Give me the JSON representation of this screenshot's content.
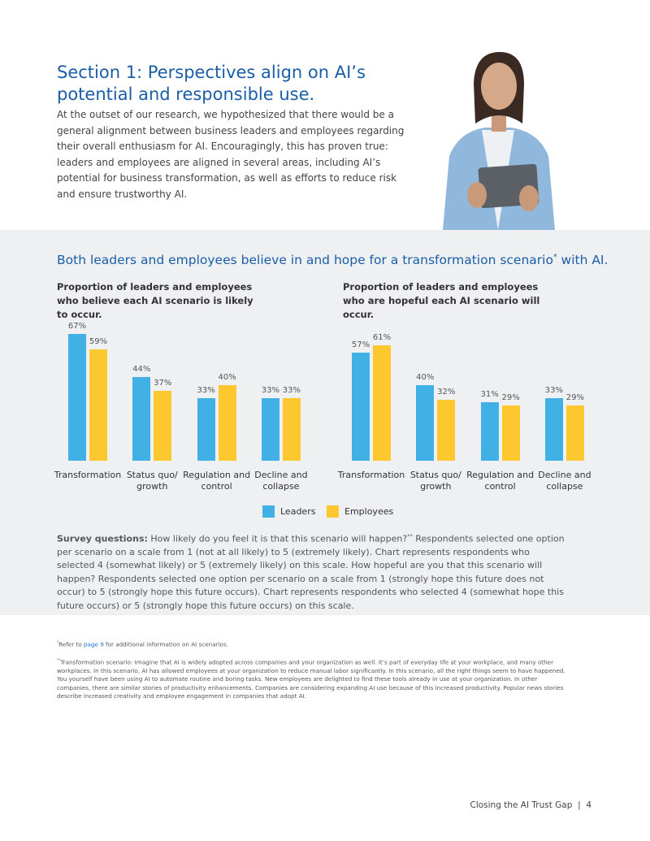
{
  "header": {
    "title": "Section 1: Perspectives align on AI’s potential and responsible use.",
    "intro": "At the outset of our research, we hypothesized that there would be a general alignment between business leaders and employees regarding their overall enthusiasm for AI. Encouragingly, this has proven true: leaders and employees are aligned in several areas, including AI’s potential for business transformation, as well as efforts to reduce risk and ensure trustworthy AI."
  },
  "section": {
    "before": "Both leaders and employees believe in and hope for a transformation scenario",
    "sup": "*",
    "after": " with AI."
  },
  "chart_data": [
    {
      "type": "bar",
      "title": "Proportion of leaders and employees who believe each AI scenario is likely to occur.",
      "categories": [
        "Transformation",
        "Status quo/ growth",
        "Regulation and control",
        "Decline and collapse"
      ],
      "series": [
        {
          "name": "Leaders",
          "color": "#41b0e4",
          "values": [
            67,
            44,
            33,
            33
          ],
          "value_labels": [
            "67%",
            "44%",
            "33%",
            "33%"
          ]
        },
        {
          "name": "Employees",
          "color": "#fdc82f",
          "values": [
            59,
            37,
            40,
            33
          ],
          "value_labels": [
            "59%",
            "37%",
            "40%",
            "33%"
          ]
        }
      ]
    },
    {
      "type": "bar",
      "title": "Proportion of leaders and employees who are hopeful each AI scenario will occur.",
      "categories": [
        "Transformation",
        "Status quo/ growth",
        "Regulation and control",
        "Decline and collapse"
      ],
      "series": [
        {
          "color": "#41b0e4",
          "values": [
            57,
            40,
            31,
            33
          ],
          "value_labels": [
            "57%",
            "40%",
            "31%",
            "33%"
          ]
        },
        {
          "color": "#fdc82f",
          "values": [
            61,
            32,
            29,
            29
          ],
          "value_labels": [
            "61%",
            "32%",
            "29%",
            "29%"
          ]
        }
      ]
    }
  ],
  "survey": {
    "label": "Survey questions:",
    "before": " How likely do you feel it is that this scenario will happen?",
    "sup": "**",
    "after": " Respondents selected one option per scenario on a scale from 1 (not at all likely) to 5 (extremely likely). Chart represents respondents who selected 4 (somewhat likely) or 5 (extremely likely) on this scale. How hopeful are you that this scenario will happen? Respondents selected one option per scenario on a scale from 1 (strongly hope this future does not occur) to 5 (strongly hope this future occurs). Chart represents respondents who selected 4 (somewhat hope this future occurs) or 5 (strongly hope this future occurs) on this scale."
  },
  "footnotes": [
    {
      "mark": "*",
      "before": "Refer to ",
      "link": "page 9",
      "after": " for additional information on AI scenarios."
    },
    {
      "mark": "**",
      "text": "Transformation scenario: Imagine that AI is widely adopted across companies and your organization as well. It’s part of everyday life at your workplace, and many other workplaces. In this scenario, AI has allowed employees at your organization to reduce manual labor significantly. In this scenario, all the right things seem to have happened. You yourself have been using AI to automate routine and boring tasks. New employees are delighted to find these tools already in use at your organization. In other companies, there are similar stories of productivity enhancements. Companies are considering expanding AI use because of this increased productivity. Popular news stories describe increased creativity and employee engagement in companies that adopt AI."
    }
  ],
  "footer": {
    "title": "Closing the AI Trust Gap",
    "page": "4"
  }
}
